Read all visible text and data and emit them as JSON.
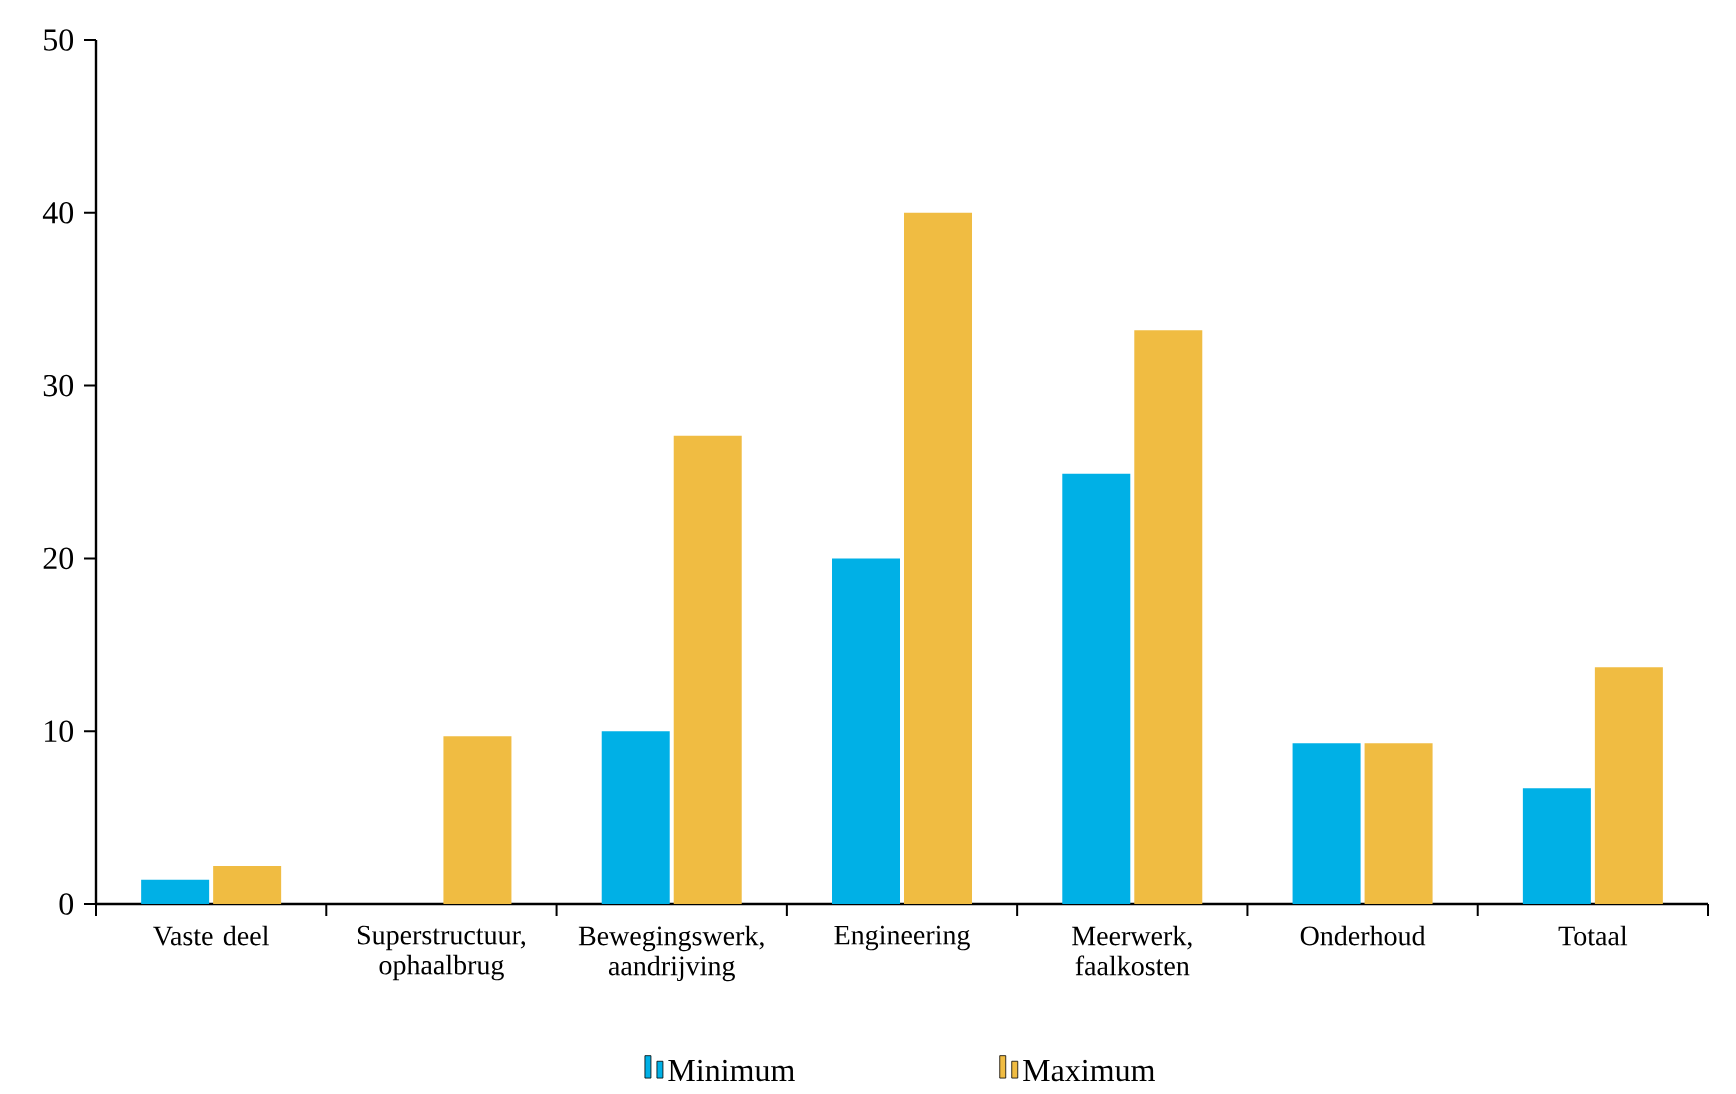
{
  "chart_data": {
    "type": "bar",
    "categories": [
      "Vaste deel",
      "Superstructuur, ophaalbrug",
      "Bewegingswerk, aandrijving",
      "Engineering",
      "Meerwerk, faalkosten",
      "Onderhoud",
      "Totaal"
    ],
    "series": [
      {
        "name": "Minimum",
        "color": "#00b0e6",
        "values": [
          1.4,
          0,
          10.0,
          20.0,
          24.9,
          9.3,
          6.7
        ]
      },
      {
        "name": "Maximum",
        "color": "#f0bc42",
        "values": [
          2.2,
          9.7,
          27.1,
          40.0,
          33.2,
          9.3,
          13.7
        ]
      }
    ],
    "ylim": [
      0,
      50
    ],
    "yticks": [
      0,
      10,
      20,
      30,
      40,
      50
    ],
    "grid": false,
    "legend": "bottom"
  }
}
